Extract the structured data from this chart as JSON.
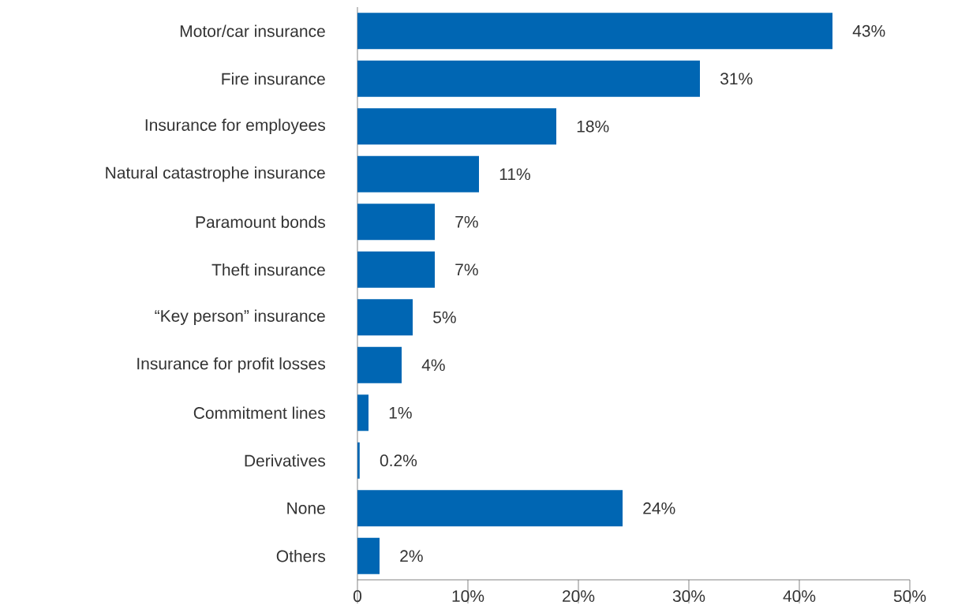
{
  "chart_data": {
    "type": "bar",
    "orientation": "horizontal",
    "color": "#0066b3",
    "categories": [
      "Motor/car insurance",
      "Fire insurance",
      "Insurance for employees",
      "Natural catastrophe insurance",
      "Paramount bonds",
      "Theft insurance",
      "“Key person” insurance",
      "Insurance for profit losses",
      "Commitment lines",
      "Derivatives",
      "None",
      "Others"
    ],
    "values": [
      43,
      31,
      18,
      11,
      7,
      7,
      5,
      4,
      1,
      0.2,
      24,
      2
    ],
    "value_labels": [
      "43%",
      "31%",
      "18%",
      "11%",
      "7%",
      "7%",
      "5%",
      "4%",
      "1%",
      "0.2%",
      "24%",
      "2%"
    ],
    "xlim": [
      0,
      50
    ],
    "xticks": [
      0,
      {
        "value": 10,
        "label": "10%"
      },
      {
        "value": 20,
        "label": "20%"
      },
      {
        "value": 30,
        "label": "30%"
      },
      {
        "value": 40,
        "label": "40%"
      },
      {
        "value": 50,
        "label": "50%"
      }
    ],
    "grid": false
  }
}
